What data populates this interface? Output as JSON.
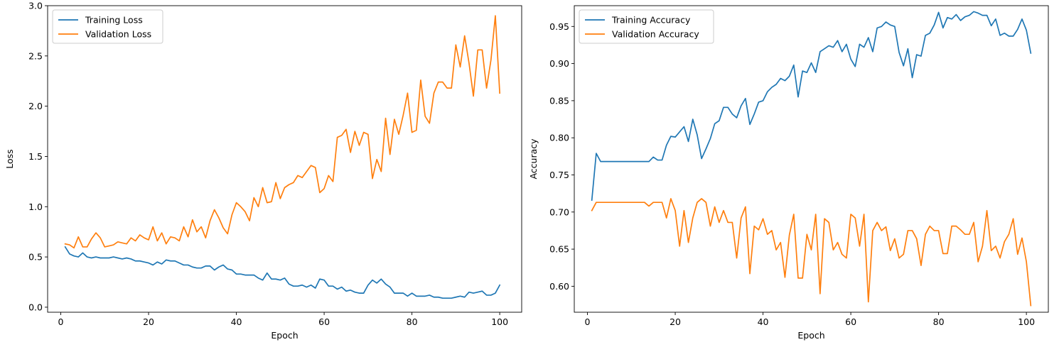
{
  "chart_data": [
    {
      "type": "line",
      "xlabel": "Epoch",
      "ylabel": "Loss",
      "xlim": [
        -3,
        105
      ],
      "ylim": [
        -0.05,
        3.0
      ],
      "xticks": [
        0,
        20,
        40,
        60,
        80,
        100
      ],
      "yticks": [
        0.0,
        0.5,
        1.0,
        1.5,
        2.0,
        2.5,
        3.0
      ],
      "xtick_labels": [
        "0",
        "20",
        "40",
        "60",
        "80",
        "100"
      ],
      "ytick_labels": [
        "0.0",
        "0.5",
        "1.0",
        "1.5",
        "2.0",
        "2.5",
        "3.0"
      ],
      "legend_position": "top-left",
      "grid": false,
      "x_start": 1,
      "series": [
        {
          "name": "Training Loss",
          "color": "#1f77b4",
          "values": [
            0.6,
            0.53,
            0.51,
            0.5,
            0.54,
            0.5,
            0.49,
            0.5,
            0.49,
            0.49,
            0.49,
            0.5,
            0.49,
            0.48,
            0.49,
            0.48,
            0.46,
            0.46,
            0.45,
            0.44,
            0.42,
            0.45,
            0.43,
            0.47,
            0.46,
            0.46,
            0.44,
            0.42,
            0.42,
            0.4,
            0.39,
            0.39,
            0.41,
            0.41,
            0.37,
            0.4,
            0.42,
            0.38,
            0.37,
            0.33,
            0.33,
            0.32,
            0.32,
            0.32,
            0.29,
            0.27,
            0.34,
            0.28,
            0.28,
            0.27,
            0.29,
            0.23,
            0.21,
            0.21,
            0.22,
            0.2,
            0.22,
            0.19,
            0.28,
            0.27,
            0.21,
            0.21,
            0.18,
            0.2,
            0.16,
            0.17,
            0.15,
            0.14,
            0.14,
            0.22,
            0.27,
            0.24,
            0.28,
            0.23,
            0.2,
            0.14,
            0.14,
            0.14,
            0.11,
            0.14,
            0.11,
            0.11,
            0.11,
            0.12,
            0.1,
            0.1,
            0.09,
            0.09,
            0.09,
            0.1,
            0.11,
            0.1,
            0.15,
            0.14,
            0.15,
            0.16,
            0.12,
            0.12,
            0.14,
            0.22
          ]
        },
        {
          "name": "Validation Loss",
          "color": "#ff7f0e",
          "values": [
            0.63,
            0.62,
            0.59,
            0.7,
            0.6,
            0.6,
            0.68,
            0.74,
            0.69,
            0.6,
            0.61,
            0.62,
            0.65,
            0.64,
            0.63,
            0.69,
            0.66,
            0.72,
            0.69,
            0.67,
            0.8,
            0.66,
            0.74,
            0.63,
            0.7,
            0.69,
            0.66,
            0.8,
            0.7,
            0.87,
            0.75,
            0.8,
            0.69,
            0.86,
            0.97,
            0.89,
            0.79,
            0.73,
            0.92,
            1.04,
            1.0,
            0.95,
            0.86,
            1.09,
            1.0,
            1.19,
            1.04,
            1.05,
            1.24,
            1.08,
            1.19,
            1.22,
            1.24,
            1.31,
            1.29,
            1.35,
            1.41,
            1.39,
            1.14,
            1.18,
            1.31,
            1.25,
            1.69,
            1.71,
            1.77,
            1.54,
            1.75,
            1.61,
            1.74,
            1.72,
            1.28,
            1.47,
            1.35,
            1.88,
            1.52,
            1.87,
            1.72,
            1.91,
            2.13,
            1.74,
            1.76,
            2.26,
            1.9,
            1.83,
            2.13,
            2.24,
            2.24,
            2.18,
            2.18,
            2.61,
            2.39,
            2.7,
            2.43,
            2.1,
            2.56,
            2.56,
            2.18,
            2.46,
            2.9,
            2.13
          ]
        }
      ]
    },
    {
      "type": "line",
      "xlabel": "Epoch",
      "ylabel": "Accuracy",
      "xlim": [
        -3,
        105
      ],
      "ylim": [
        0.565,
        0.978
      ],
      "xticks": [
        0,
        20,
        40,
        60,
        80,
        100
      ],
      "yticks": [
        0.6,
        0.65,
        0.7,
        0.75,
        0.8,
        0.85,
        0.9,
        0.95
      ],
      "xtick_labels": [
        "0",
        "20",
        "40",
        "60",
        "80",
        "100"
      ],
      "ytick_labels": [
        "0.60",
        "0.65",
        "0.70",
        "0.75",
        "0.80",
        "0.85",
        "0.90",
        "0.95"
      ],
      "legend_position": "top-left",
      "grid": false,
      "x_start": 1,
      "series": [
        {
          "name": "Training Accuracy",
          "color": "#1f77b4",
          "values": [
            0.716,
            0.779,
            0.768,
            0.768,
            0.768,
            0.768,
            0.768,
            0.768,
            0.768,
            0.768,
            0.768,
            0.768,
            0.768,
            0.768,
            0.774,
            0.77,
            0.77,
            0.79,
            0.802,
            0.801,
            0.808,
            0.815,
            0.795,
            0.825,
            0.804,
            0.772,
            0.785,
            0.799,
            0.819,
            0.823,
            0.841,
            0.841,
            0.832,
            0.827,
            0.843,
            0.853,
            0.818,
            0.832,
            0.848,
            0.85,
            0.862,
            0.868,
            0.872,
            0.88,
            0.877,
            0.883,
            0.898,
            0.855,
            0.89,
            0.888,
            0.901,
            0.888,
            0.916,
            0.92,
            0.924,
            0.922,
            0.931,
            0.916,
            0.926,
            0.906,
            0.896,
            0.926,
            0.922,
            0.935,
            0.916,
            0.948,
            0.95,
            0.956,
            0.952,
            0.95,
            0.915,
            0.897,
            0.92,
            0.881,
            0.912,
            0.91,
            0.938,
            0.941,
            0.952,
            0.969,
            0.948,
            0.962,
            0.96,
            0.966,
            0.958,
            0.963,
            0.965,
            0.97,
            0.968,
            0.965,
            0.965,
            0.951,
            0.96,
            0.938,
            0.941,
            0.937,
            0.937,
            0.946,
            0.96,
            0.945,
            0.914
          ]
        },
        {
          "name": "Validation Accuracy",
          "color": "#ff7f0e",
          "values": [
            0.702,
            0.713,
            0.713,
            0.713,
            0.713,
            0.713,
            0.713,
            0.713,
            0.713,
            0.713,
            0.713,
            0.713,
            0.713,
            0.708,
            0.713,
            0.713,
            0.713,
            0.692,
            0.718,
            0.702,
            0.654,
            0.702,
            0.659,
            0.692,
            0.713,
            0.718,
            0.713,
            0.681,
            0.707,
            0.686,
            0.702,
            0.686,
            0.686,
            0.638,
            0.692,
            0.707,
            0.617,
            0.681,
            0.676,
            0.691,
            0.67,
            0.675,
            0.649,
            0.659,
            0.612,
            0.669,
            0.697,
            0.611,
            0.611,
            0.67,
            0.649,
            0.697,
            0.59,
            0.691,
            0.686,
            0.649,
            0.659,
            0.643,
            0.638,
            0.697,
            0.692,
            0.654,
            0.697,
            0.579,
            0.675,
            0.686,
            0.675,
            0.68,
            0.648,
            0.664,
            0.638,
            0.643,
            0.675,
            0.675,
            0.664,
            0.628,
            0.67,
            0.681,
            0.675,
            0.675,
            0.644,
            0.644,
            0.681,
            0.681,
            0.676,
            0.67,
            0.67,
            0.686,
            0.633,
            0.654,
            0.702,
            0.648,
            0.654,
            0.638,
            0.66,
            0.67,
            0.691,
            0.643,
            0.665,
            0.633,
            0.574
          ]
        }
      ]
    }
  ]
}
